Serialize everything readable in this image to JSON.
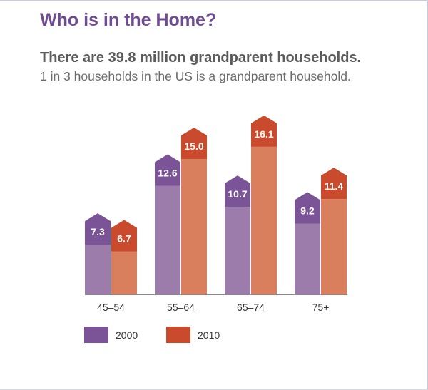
{
  "header": {
    "title": "Who is in the Home?",
    "subtitle": "There are 39.8 million grandparent households.",
    "note": "1 in 3 households in the US is a grandparent household."
  },
  "colors": {
    "title": "#6f4b92",
    "s2000_body": "#9b7cab",
    "s2000_top": "#7a5496",
    "s2010_body": "#d97f5d",
    "s2010_top": "#c94a2c",
    "axis": "#888888"
  },
  "chart_data": {
    "type": "bar",
    "categories": [
      "45–54",
      "55–64",
      "65–74",
      "75+"
    ],
    "series": [
      {
        "name": "2000",
        "values": [
          7.3,
          12.6,
          10.7,
          9.2
        ],
        "value_labels": [
          "7.3",
          "12.6",
          "10.7",
          "9.2"
        ]
      },
      {
        "name": "2010",
        "values": [
          6.7,
          15.0,
          16.1,
          11.4
        ],
        "value_labels": [
          "6.7",
          "15.0",
          "16.1",
          "11.4"
        ]
      }
    ],
    "legend_placement": "bottom-left",
    "grid": false
  }
}
